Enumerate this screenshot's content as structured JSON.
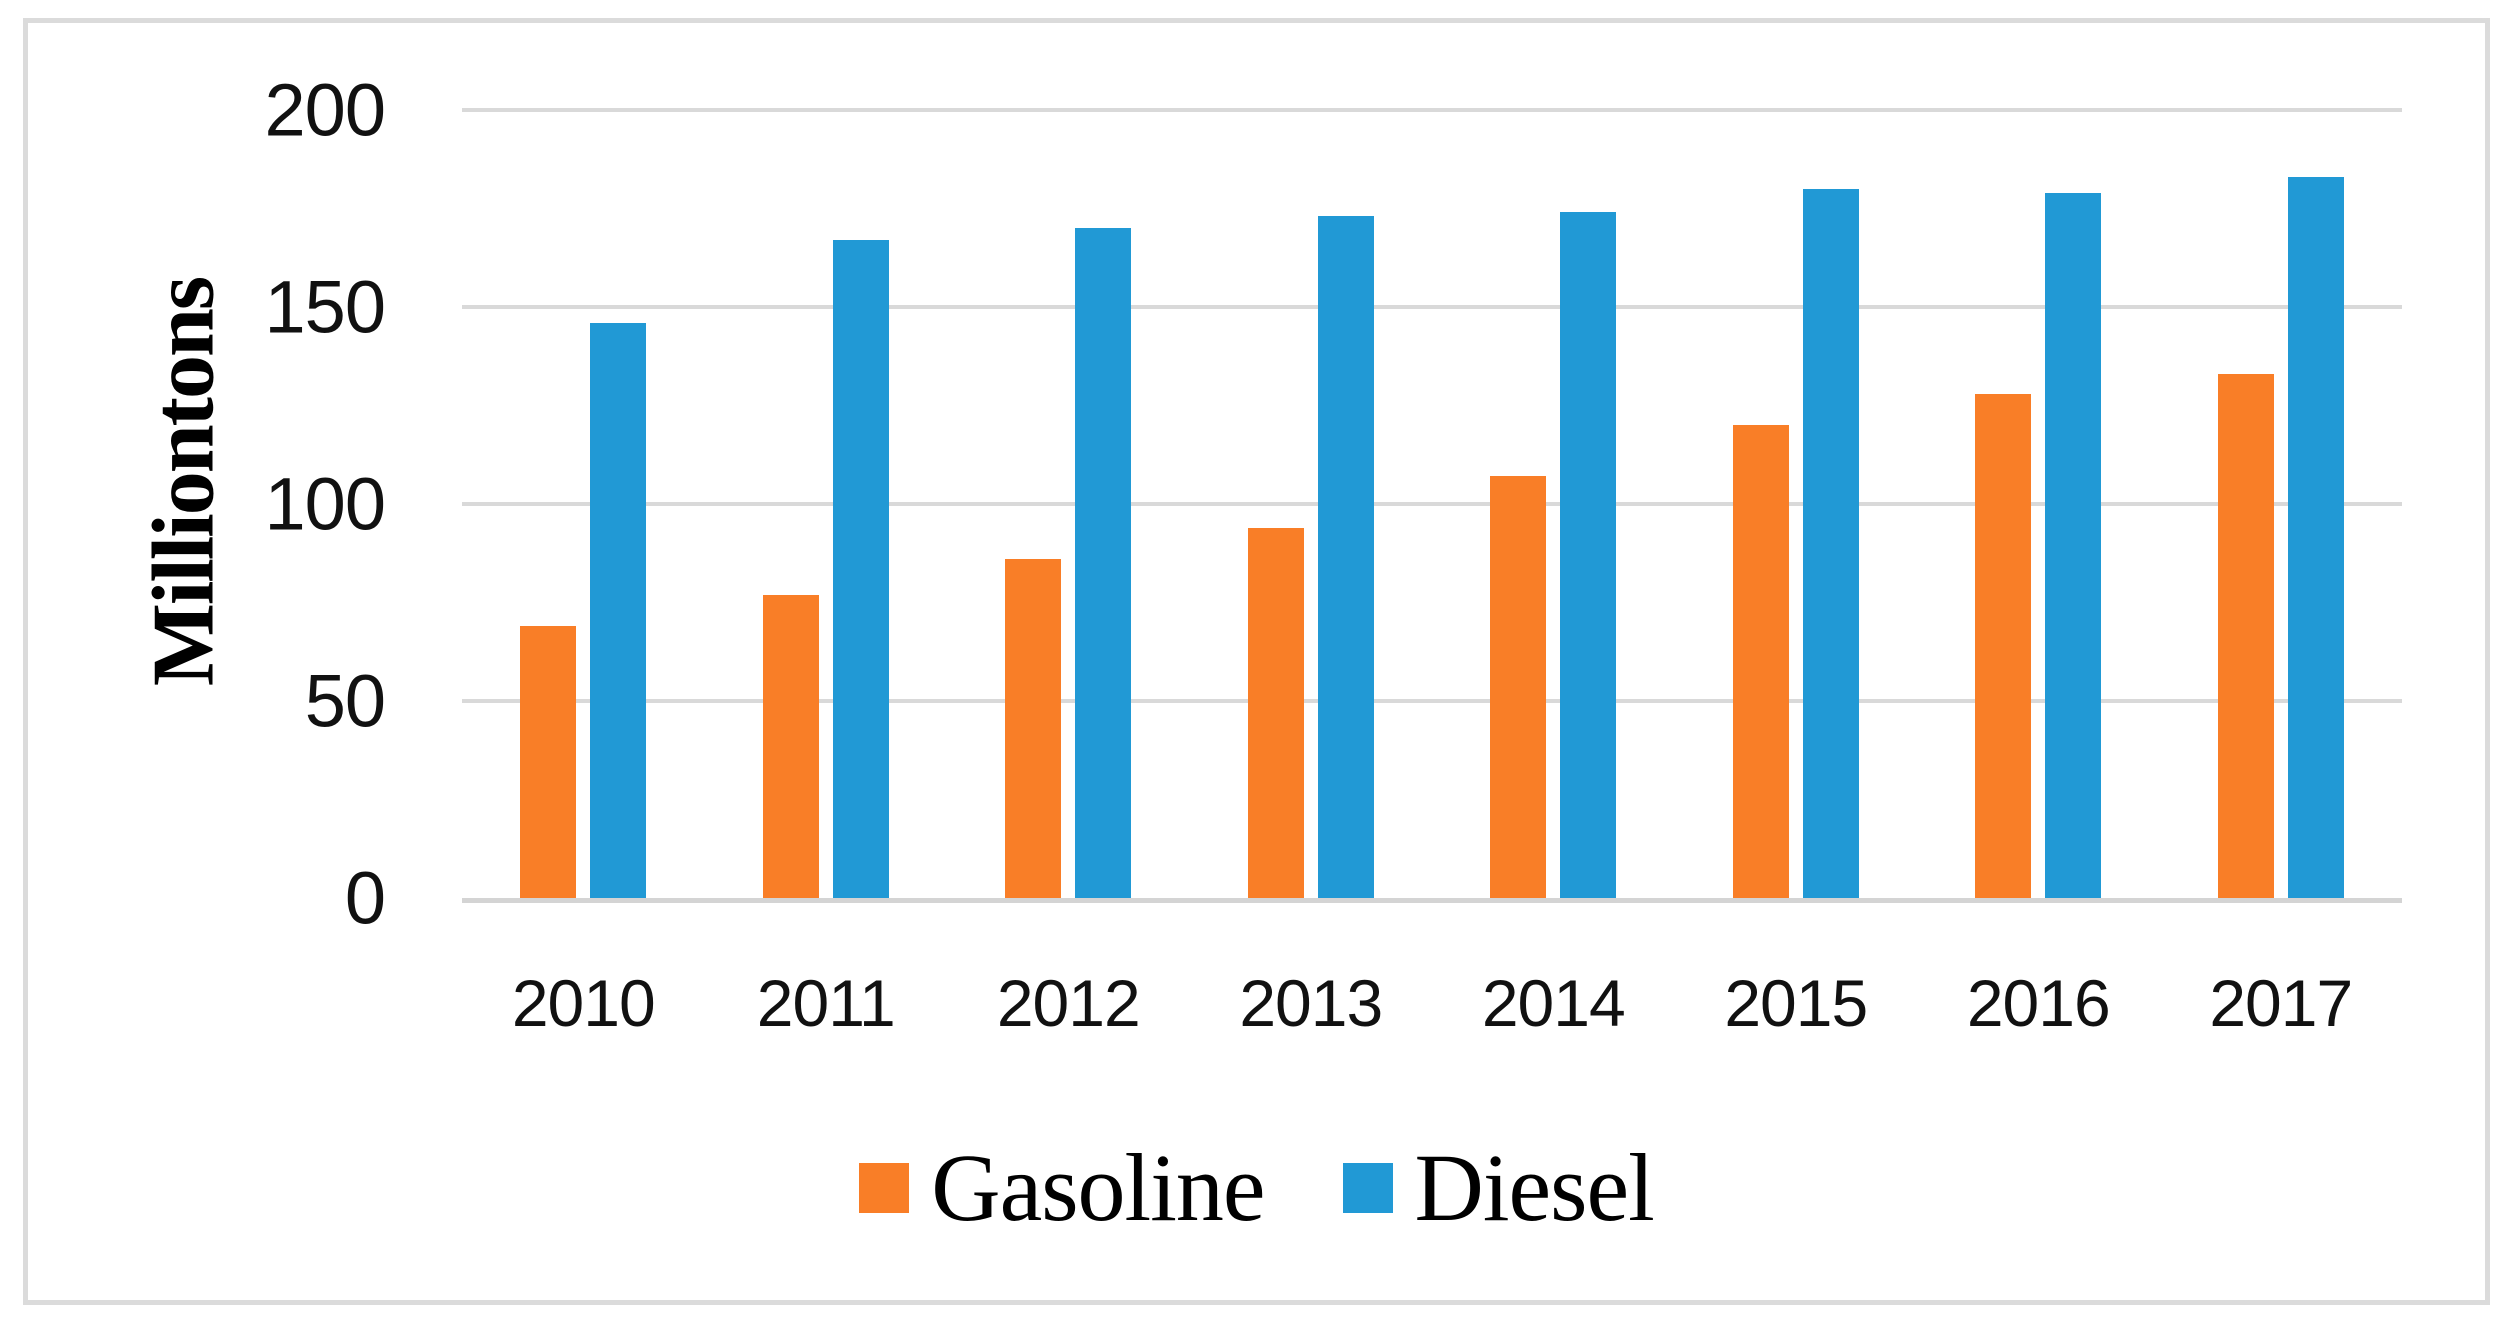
{
  "chart_data": {
    "type": "bar",
    "title": "",
    "categories": [
      "2010",
      "2011",
      "2012",
      "2013",
      "2014",
      "2015",
      "2016",
      "2017"
    ],
    "series": [
      {
        "name": "Gasoline",
        "color": "#f97e27",
        "values": [
          69,
          77,
          86,
          94,
          107,
          120,
          128,
          133
        ]
      },
      {
        "name": "Diesel",
        "color": "#2199d5",
        "values": [
          146,
          167,
          170,
          173,
          174,
          180,
          179,
          183
        ]
      }
    ],
    "xlabel": "",
    "ylabel": "Milliontons",
    "yticks": [
      "0",
      "50",
      "100",
      "150",
      "200"
    ],
    "ytick_values": [
      0,
      50,
      100,
      150,
      200
    ],
    "ylim": [
      0,
      200
    ],
    "grid": "horizontal-only",
    "gridline_color": "#d9d9d9",
    "axis_line_color": "#d4d4d4",
    "frame_border_color": "#dbdbdb",
    "background_color": "#ffffff",
    "legend_position": "bottom"
  },
  "legend": {
    "items": [
      {
        "label": "Gasoline",
        "color": "#f97e27"
      },
      {
        "label": "Diesel",
        "color": "#2199d5"
      }
    ]
  }
}
